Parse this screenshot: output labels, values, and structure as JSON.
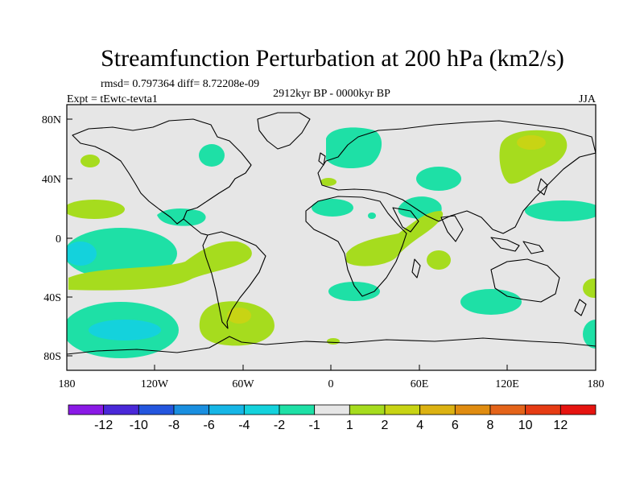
{
  "title": "Streamfunction Perturbation at 200 hPa (km2/s)",
  "stats_line": "rmsd= 0.797364 diff= 8.72208e-09",
  "experiment": "Expt = tEwtc-tevta1",
  "period": "2912kyr BP - 0000kyr BP",
  "season": "JJA",
  "lat_ticks": [
    "80N",
    "40N",
    "0",
    "40S",
    "80S"
  ],
  "lon_ticks": [
    "180",
    "120W",
    "60W",
    "0",
    "60E",
    "120E",
    "180"
  ],
  "colorbar": {
    "labels": [
      "-12",
      "-10",
      "-8",
      "-6",
      "-4",
      "-2",
      "-1",
      "1",
      "2",
      "4",
      "6",
      "8",
      "10",
      "12"
    ],
    "colors": [
      "#8a1ae6",
      "#4a28d8",
      "#2456de",
      "#1a8fe0",
      "#16b6e6",
      "#14d2dc",
      "#1ee0a6",
      "#e6e6e6",
      "#a6dc1e",
      "#c8d414",
      "#dcb212",
      "#e08c10",
      "#e4641a",
      "#e63c14",
      "#e61410"
    ]
  },
  "colors": {
    "background": "#e6e6e6",
    "neg1": "#1ee0a6",
    "neg2": "#14d2dc",
    "pos1": "#a6dc1e",
    "pos2": "#c8d414"
  }
}
